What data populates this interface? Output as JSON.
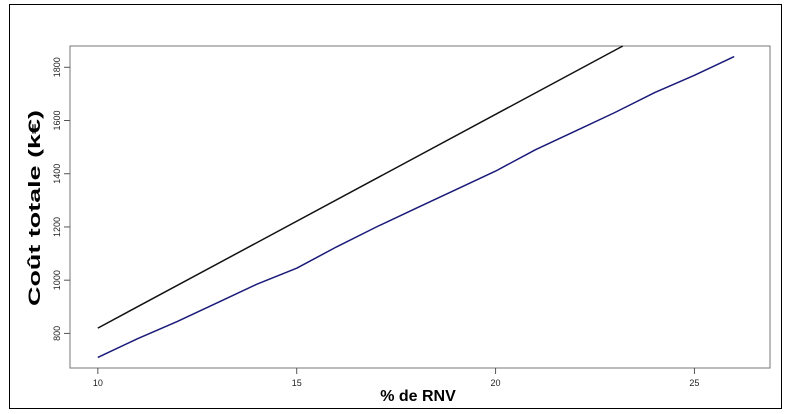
{
  "chart_data": {
    "type": "line",
    "title": "",
    "xlabel": "% de RNV",
    "ylabel": "Coût totale (k€)",
    "xlim": [
      9.3,
      26.9
    ],
    "ylim": [
      670,
      1880
    ],
    "x_ticks": [
      10,
      15,
      20,
      25
    ],
    "y_ticks": [
      800,
      1000,
      1200,
      1400,
      1600,
      1800
    ],
    "grid": false,
    "series": [
      {
        "color": "#111111",
        "x": [
          10,
          23.2
        ],
        "y": [
          820,
          1880
        ]
      },
      {
        "color": "#1a1a7a",
        "x": [
          10,
          11,
          12,
          13,
          14,
          15,
          16,
          17,
          18,
          19,
          20,
          21,
          22,
          23,
          24,
          25,
          26
        ],
        "y": [
          710,
          780,
          845,
          915,
          985,
          1045,
          1125,
          1200,
          1270,
          1340,
          1410,
          1490,
          1560,
          1630,
          1705,
          1770,
          1840
        ]
      }
    ]
  }
}
